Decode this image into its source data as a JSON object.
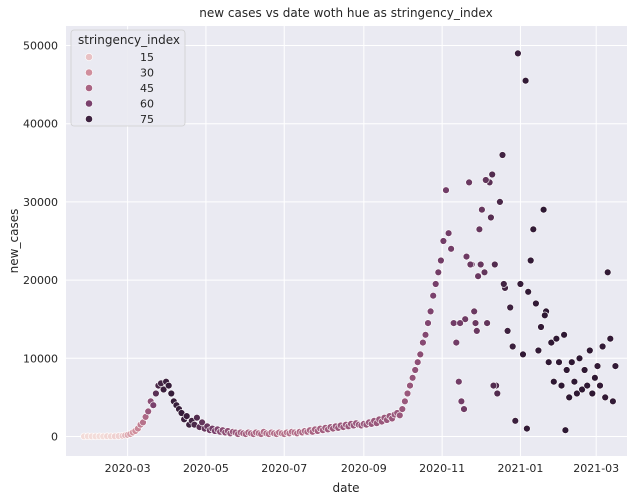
{
  "chart_data": {
    "type": "scatter",
    "title": "new cases vs date woth hue as stringency_index",
    "xlabel": "date",
    "ylabel": "new_cases",
    "x_tick_labels": [
      "2020-03",
      "2020-05",
      "2020-07",
      "2020-09",
      "2020-11",
      "2021-01",
      "2021-03"
    ],
    "x_tick_dates": [
      "2020-03-01",
      "2020-05-01",
      "2020-07-01",
      "2020-09-01",
      "2020-11-01",
      "2021-01-01",
      "2021-03-01"
    ],
    "xlim": [
      "2020-01-13",
      "2021-03-25"
    ],
    "ylim": [
      -2500,
      52500
    ],
    "y_ticks": [
      0,
      10000,
      20000,
      30000,
      40000,
      50000
    ],
    "y_tick_labels": [
      "0",
      "10000",
      "20000",
      "30000",
      "40000",
      "50000"
    ],
    "grid": true,
    "legend": {
      "title": "stringency_index",
      "placement": "top-left",
      "entries": [
        {
          "label": "15",
          "color": "#e8c1c4"
        },
        {
          "label": "30",
          "color": "#d08e9c"
        },
        {
          "label": "45",
          "color": "#a96483"
        },
        {
          "label": "60",
          "color": "#7a416d"
        },
        {
          "label": "75",
          "color": "#3e2240"
        }
      ]
    },
    "hue_colors": [
      "#f0d4d4",
      "#e8c1c4",
      "#d08e9c",
      "#a96483",
      "#7a416d",
      "#3e2240",
      "#2a1530"
    ],
    "points": [
      [
        "2020-01-27",
        10,
        8
      ],
      [
        "2020-01-30",
        15,
        8
      ],
      [
        "2020-02-02",
        8,
        8
      ],
      [
        "2020-02-05",
        12,
        10
      ],
      [
        "2020-02-08",
        20,
        10
      ],
      [
        "2020-02-11",
        10,
        10
      ],
      [
        "2020-02-14",
        30,
        11
      ],
      [
        "2020-02-17",
        15,
        11
      ],
      [
        "2020-02-20",
        25,
        12
      ],
      [
        "2020-02-23",
        40,
        12
      ],
      [
        "2020-02-26",
        80,
        14
      ],
      [
        "2020-02-28",
        150,
        18
      ],
      [
        "2020-03-01",
        200,
        22
      ],
      [
        "2020-03-03",
        300,
        25
      ],
      [
        "2020-03-05",
        500,
        28
      ],
      [
        "2020-03-07",
        700,
        30
      ],
      [
        "2020-03-09",
        1000,
        33
      ],
      [
        "2020-03-11",
        1500,
        36
      ],
      [
        "2020-03-13",
        1800,
        40
      ],
      [
        "2020-03-15",
        2500,
        44
      ],
      [
        "2020-03-17",
        3200,
        50
      ],
      [
        "2020-03-19",
        4500,
        55
      ],
      [
        "2020-03-21",
        4000,
        60
      ],
      [
        "2020-03-23",
        5500,
        68
      ],
      [
        "2020-03-25",
        6500,
        72
      ],
      [
        "2020-03-27",
        6800,
        74
      ],
      [
        "2020-03-29",
        6000,
        76
      ],
      [
        "2020-03-31",
        7000,
        76
      ],
      [
        "2020-04-02",
        6500,
        77
      ],
      [
        "2020-04-04",
        5500,
        77
      ],
      [
        "2020-04-06",
        4500,
        77
      ],
      [
        "2020-04-08",
        4000,
        77
      ],
      [
        "2020-04-10",
        3500,
        77
      ],
      [
        "2020-04-12",
        3000,
        77
      ],
      [
        "2020-04-14",
        2200,
        76
      ],
      [
        "2020-04-16",
        2600,
        76
      ],
      [
        "2020-04-18",
        1500,
        75
      ],
      [
        "2020-04-20",
        2000,
        74
      ],
      [
        "2020-04-22",
        1500,
        72
      ],
      [
        "2020-04-24",
        2400,
        70
      ],
      [
        "2020-04-26",
        1200,
        68
      ],
      [
        "2020-04-28",
        1800,
        66
      ],
      [
        "2020-04-30",
        1000,
        65
      ],
      [
        "2020-05-02",
        1300,
        64
      ],
      [
        "2020-05-04",
        800,
        63
      ],
      [
        "2020-05-06",
        1000,
        62
      ],
      [
        "2020-05-08",
        700,
        60
      ],
      [
        "2020-05-10",
        900,
        58
      ],
      [
        "2020-05-12",
        600,
        56
      ],
      [
        "2020-05-14",
        800,
        55
      ],
      [
        "2020-05-16",
        500,
        54
      ],
      [
        "2020-05-18",
        700,
        53
      ],
      [
        "2020-05-20",
        400,
        52
      ],
      [
        "2020-05-22",
        600,
        50
      ],
      [
        "2020-05-24",
        500,
        50
      ],
      [
        "2020-05-26",
        300,
        48
      ],
      [
        "2020-05-28",
        500,
        48
      ],
      [
        "2020-05-30",
        400,
        47
      ],
      [
        "2020-06-01",
        300,
        46
      ],
      [
        "2020-06-03",
        500,
        45
      ],
      [
        "2020-06-05",
        400,
        45
      ],
      [
        "2020-06-07",
        300,
        44
      ],
      [
        "2020-06-09",
        500,
        44
      ],
      [
        "2020-06-11",
        400,
        43
      ],
      [
        "2020-06-13",
        300,
        43
      ],
      [
        "2020-06-15",
        600,
        42
      ],
      [
        "2020-06-17",
        400,
        42
      ],
      [
        "2020-06-19",
        300,
        42
      ],
      [
        "2020-06-21",
        500,
        41
      ],
      [
        "2020-06-23",
        400,
        41
      ],
      [
        "2020-06-25",
        300,
        41
      ],
      [
        "2020-06-27",
        500,
        40
      ],
      [
        "2020-06-29",
        400,
        40
      ],
      [
        "2020-07-01",
        300,
        40
      ],
      [
        "2020-07-03",
        500,
        40
      ],
      [
        "2020-07-05",
        400,
        41
      ],
      [
        "2020-07-07",
        600,
        41
      ],
      [
        "2020-07-09",
        500,
        42
      ],
      [
        "2020-07-11",
        400,
        42
      ],
      [
        "2020-07-13",
        600,
        43
      ],
      [
        "2020-07-15",
        500,
        43
      ],
      [
        "2020-07-17",
        700,
        44
      ],
      [
        "2020-07-19",
        600,
        44
      ],
      [
        "2020-07-21",
        800,
        45
      ],
      [
        "2020-07-23",
        600,
        45
      ],
      [
        "2020-07-25",
        900,
        46
      ],
      [
        "2020-07-27",
        700,
        46
      ],
      [
        "2020-07-29",
        1000,
        47
      ],
      [
        "2020-07-31",
        800,
        47
      ],
      [
        "2020-08-02",
        1100,
        48
      ],
      [
        "2020-08-04",
        900,
        48
      ],
      [
        "2020-08-06",
        1200,
        49
      ],
      [
        "2020-08-08",
        1000,
        49
      ],
      [
        "2020-08-10",
        1300,
        50
      ],
      [
        "2020-08-12",
        1100,
        50
      ],
      [
        "2020-08-14",
        1400,
        50
      ],
      [
        "2020-08-16",
        1200,
        50
      ],
      [
        "2020-08-18",
        1500,
        50
      ],
      [
        "2020-08-20",
        1300,
        50
      ],
      [
        "2020-08-22",
        1600,
        50
      ],
      [
        "2020-08-24",
        1400,
        50
      ],
      [
        "2020-08-26",
        1700,
        50
      ],
      [
        "2020-08-28",
        1500,
        50
      ],
      [
        "2020-08-30",
        1400,
        50
      ],
      [
        "2020-09-01",
        1600,
        50
      ],
      [
        "2020-09-03",
        1500,
        50
      ],
      [
        "2020-09-05",
        1800,
        50
      ],
      [
        "2020-09-07",
        1600,
        50
      ],
      [
        "2020-09-09",
        2000,
        50
      ],
      [
        "2020-09-11",
        1700,
        50
      ],
      [
        "2020-09-13",
        2200,
        50
      ],
      [
        "2020-09-15",
        1900,
        50
      ],
      [
        "2020-09-17",
        2400,
        50
      ],
      [
        "2020-09-19",
        2100,
        50
      ],
      [
        "2020-09-21",
        2600,
        50
      ],
      [
        "2020-09-23",
        2300,
        50
      ],
      [
        "2020-09-25",
        2800,
        50
      ],
      [
        "2020-09-27",
        3000,
        50
      ],
      [
        "2020-09-29",
        2700,
        50
      ],
      [
        "2020-10-01",
        3500,
        50
      ],
      [
        "2020-10-03",
        4500,
        50
      ],
      [
        "2020-10-05",
        5500,
        50
      ],
      [
        "2020-10-07",
        6500,
        51
      ],
      [
        "2020-10-09",
        7500,
        52
      ],
      [
        "2020-10-11",
        8500,
        53
      ],
      [
        "2020-10-13",
        9500,
        54
      ],
      [
        "2020-10-15",
        10500,
        55
      ],
      [
        "2020-10-17",
        12000,
        56
      ],
      [
        "2020-10-19",
        13000,
        57
      ],
      [
        "2020-10-21",
        14500,
        58
      ],
      [
        "2020-10-23",
        16000,
        59
      ],
      [
        "2020-10-25",
        18000,
        60
      ],
      [
        "2020-10-27",
        19500,
        61
      ],
      [
        "2020-10-29",
        21000,
        62
      ],
      [
        "2020-10-31",
        22500,
        62
      ],
      [
        "2020-11-02",
        25000,
        62
      ],
      [
        "2020-11-04",
        31500,
        62
      ],
      [
        "2020-11-06",
        26000,
        62
      ],
      [
        "2020-11-08",
        24000,
        62
      ],
      [
        "2020-11-10",
        14500,
        62
      ],
      [
        "2020-11-12",
        12000,
        62
      ],
      [
        "2020-11-14",
        7000,
        62
      ],
      [
        "2020-11-16",
        4500,
        62
      ],
      [
        "2020-11-18",
        3500,
        63
      ],
      [
        "2020-11-20",
        23000,
        63
      ],
      [
        "2020-11-22",
        32500,
        64
      ],
      [
        "2020-11-24",
        22000,
        64
      ],
      [
        "2020-11-26",
        16000,
        64
      ],
      [
        "2020-11-28",
        13500,
        64
      ],
      [
        "2020-11-30",
        26500,
        65
      ],
      [
        "2020-12-02",
        29000,
        65
      ],
      [
        "2020-12-04",
        21000,
        66
      ],
      [
        "2020-12-06",
        14500,
        66
      ],
      [
        "2020-12-08",
        32500,
        68
      ],
      [
        "2020-12-10",
        33500,
        70
      ],
      [
        "2020-12-12",
        22000,
        70
      ],
      [
        "2020-12-14",
        5500,
        70
      ],
      [
        "2020-12-16",
        30000,
        72
      ],
      [
        "2020-12-18",
        36000,
        74
      ],
      [
        "2020-12-20",
        19000,
        74
      ],
      [
        "2020-12-22",
        13500,
        75
      ],
      [
        "2020-12-24",
        16500,
        75
      ],
      [
        "2020-12-26",
        11500,
        76
      ],
      [
        "2020-12-28",
        2000,
        76
      ],
      [
        "2020-12-30",
        49000,
        76
      ],
      [
        "2021-01-01",
        19500,
        77
      ],
      [
        "2021-01-03",
        10500,
        78
      ],
      [
        "2021-01-05",
        45500,
        78
      ],
      [
        "2021-01-07",
        18500,
        78
      ],
      [
        "2021-01-09",
        22500,
        78
      ],
      [
        "2021-01-11",
        26500,
        78
      ],
      [
        "2021-01-13",
        17000,
        78
      ],
      [
        "2021-01-15",
        11000,
        78
      ],
      [
        "2021-01-17",
        14000,
        78
      ],
      [
        "2021-01-19",
        29000,
        79
      ],
      [
        "2021-01-21",
        16000,
        79
      ],
      [
        "2021-01-23",
        9500,
        79
      ],
      [
        "2021-01-25",
        12000,
        79
      ],
      [
        "2021-01-27",
        7000,
        79
      ],
      [
        "2021-01-29",
        12500,
        79
      ],
      [
        "2021-01-31",
        9500,
        79
      ],
      [
        "2021-02-02",
        6500,
        79
      ],
      [
        "2021-02-04",
        13000,
        79
      ],
      [
        "2021-02-06",
        8500,
        79
      ],
      [
        "2021-02-08",
        5000,
        79
      ],
      [
        "2021-02-10",
        9500,
        79
      ],
      [
        "2021-02-12",
        7000,
        79
      ],
      [
        "2021-02-14",
        5500,
        79
      ],
      [
        "2021-02-16",
        10000,
        79
      ],
      [
        "2021-02-18",
        6000,
        79
      ],
      [
        "2021-02-20",
        8500,
        79
      ],
      [
        "2021-02-22",
        6500,
        79
      ],
      [
        "2021-02-24",
        11000,
        79
      ],
      [
        "2021-02-26",
        5500,
        79
      ],
      [
        "2021-02-28",
        7500,
        79
      ],
      [
        "2021-03-02",
        9000,
        78
      ],
      [
        "2021-03-04",
        6500,
        78
      ],
      [
        "2021-03-06",
        11500,
        78
      ],
      [
        "2021-03-08",
        5000,
        78
      ],
      [
        "2021-03-10",
        21000,
        78
      ],
      [
        "2021-03-12",
        12500,
        78
      ],
      [
        "2021-03-14",
        4500,
        78
      ],
      [
        "2021-03-16",
        9000,
        78
      ],
      [
        "2020-12-05",
        32800,
        66
      ],
      [
        "2020-12-09",
        28000,
        69
      ],
      [
        "2020-11-19",
        15000,
        63
      ],
      [
        "2020-11-27",
        14500,
        64
      ],
      [
        "2020-12-13",
        6500,
        72
      ],
      [
        "2020-12-19",
        19500,
        74
      ],
      [
        "2021-01-06",
        1000,
        78
      ],
      [
        "2021-01-20",
        15500,
        79
      ],
      [
        "2021-02-05",
        800,
        79
      ],
      [
        "2020-11-15",
        14500,
        62
      ],
      [
        "2020-11-23",
        22000,
        64
      ],
      [
        "2020-11-29",
        20500,
        64
      ],
      [
        "2020-12-01",
        22000,
        65
      ],
      [
        "2020-12-11",
        6500,
        70
      ]
    ]
  }
}
